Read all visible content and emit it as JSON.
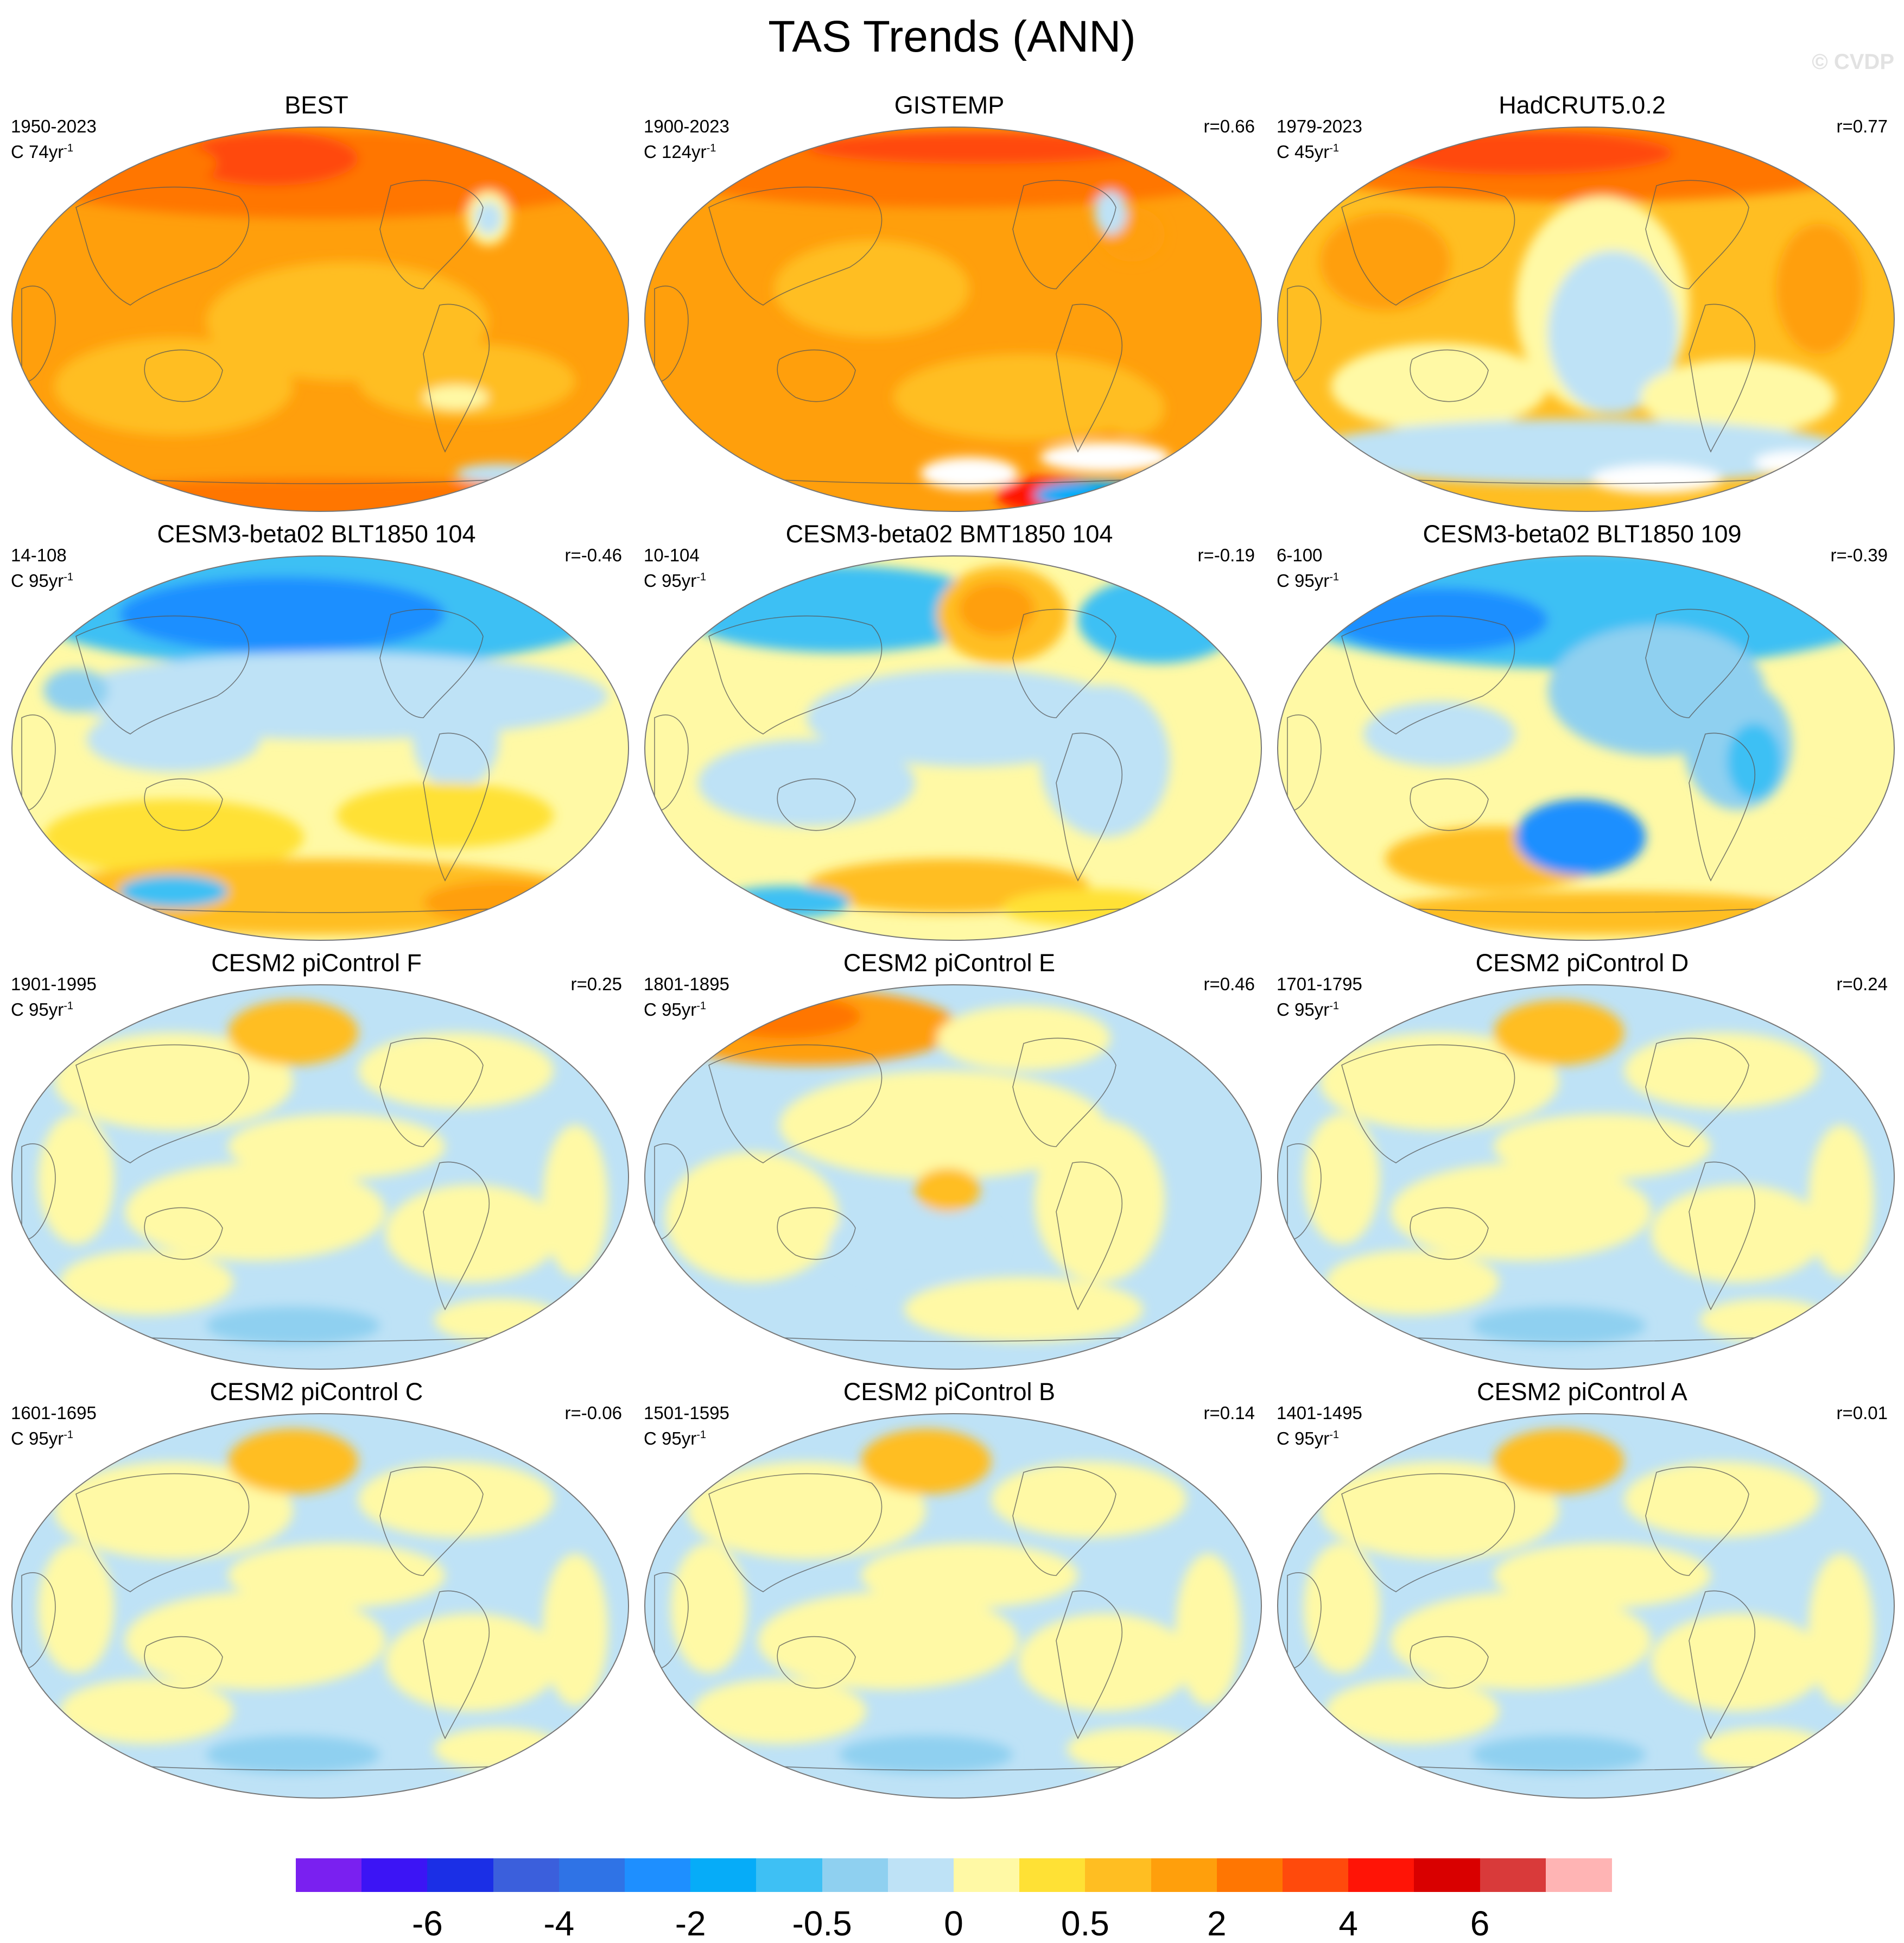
{
  "title": "TAS Trends (ANN)",
  "watermark": "© CVDP",
  "panels": [
    {
      "title": "BEST",
      "period": "1950-2023",
      "units": "C 74yr",
      "units_exp": "-1",
      "r": "",
      "pattern": "warm_obs"
    },
    {
      "title": "GISTEMP",
      "period": "1900-2023",
      "units": "C 124yr",
      "units_exp": "-1",
      "r": "r=0.66",
      "pattern": "warm_obs2"
    },
    {
      "title": "HadCRUT5.0.2",
      "period": "1979-2023",
      "units": "C 45yr",
      "units_exp": "-1",
      "r": "r=0.77",
      "pattern": "warm_obs3"
    },
    {
      "title": "CESM3-beta02 BLT1850 104",
      "period": "14-108",
      "units": "C 95yr",
      "units_exp": "-1",
      "r": "r=-0.46",
      "pattern": "cold_north"
    },
    {
      "title": "CESM3-beta02 BMT1850 104",
      "period": "10-104",
      "units": "C 95yr",
      "units_exp": "-1",
      "r": "r=-0.19",
      "pattern": "mixed_cold"
    },
    {
      "title": "CESM3-beta02 BLT1850 109",
      "period": "6-100",
      "units": "C 95yr",
      "units_exp": "-1",
      "r": "r=-0.39",
      "pattern": "cold_north2"
    },
    {
      "title": "CESM2 piControl F",
      "period": "1901-1995",
      "units": "C 95yr",
      "units_exp": "-1",
      "r": "r=0.25",
      "pattern": "neutral"
    },
    {
      "title": "CESM2 piControl E",
      "period": "1801-1895",
      "units": "C 95yr",
      "units_exp": "-1",
      "r": "r=0.46",
      "pattern": "neutral_warm"
    },
    {
      "title": "CESM2 piControl D",
      "period": "1701-1795",
      "units": "C 95yr",
      "units_exp": "-1",
      "r": "r=0.24",
      "pattern": "neutral"
    },
    {
      "title": "CESM2 piControl C",
      "period": "1601-1695",
      "units": "C 95yr",
      "units_exp": "-1",
      "r": "r=-0.06",
      "pattern": "neutral"
    },
    {
      "title": "CESM2 piControl B",
      "period": "1501-1595",
      "units": "C 95yr",
      "units_exp": "-1",
      "r": "r=0.14",
      "pattern": "neutral"
    },
    {
      "title": "CESM2 piControl A",
      "period": "1401-1495",
      "units": "C 95yr",
      "units_exp": "-1",
      "r": "r=0.01",
      "pattern": "neutral"
    }
  ],
  "colorbar": {
    "colors": [
      "#7a20f0",
      "#3c14f5",
      "#1b2fe6",
      "#3b5fdc",
      "#2f73e6",
      "#1e8fff",
      "#06acf8",
      "#3ec0f4",
      "#8fd0f0",
      "#bee2f6",
      "#fff9a5",
      "#ffe135",
      "#ffbe22",
      "#ff9f0c",
      "#ff7602",
      "#ff4a0c",
      "#ff1406",
      "#d90000",
      "#d93a3a",
      "#ffb4b4"
    ],
    "labels": [
      {
        "text": "-6",
        "boundary": 2
      },
      {
        "text": "-4",
        "boundary": 4
      },
      {
        "text": "-2",
        "boundary": 6
      },
      {
        "text": "-0.5",
        "boundary": 8
      },
      {
        "text": "0",
        "boundary": 10
      },
      {
        "text": "0.5",
        "boundary": 12
      },
      {
        "text": "2",
        "boundary": 14
      },
      {
        "text": "4",
        "boundary": 16
      },
      {
        "text": "6",
        "boundary": 18
      }
    ]
  }
}
